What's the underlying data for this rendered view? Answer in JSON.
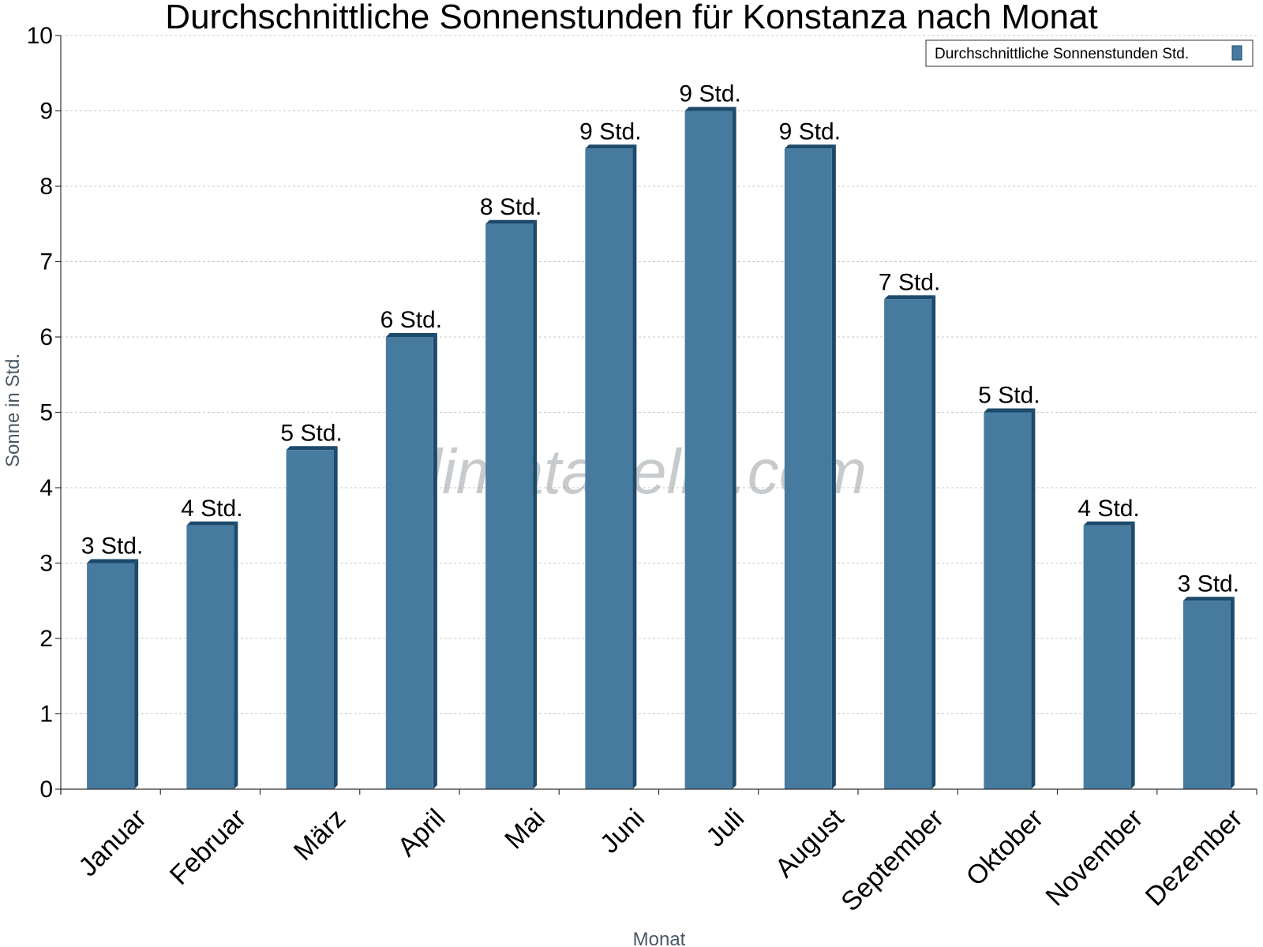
{
  "chart_data": {
    "type": "bar",
    "title": "Durchschnittliche Sonnenstunden für Konstanza nach Monat",
    "xlabel": "Monat",
    "ylabel": "Sonne in Std.",
    "ylim": [
      0,
      10
    ],
    "yticks": [
      "0",
      "1",
      "2",
      "3",
      "4",
      "5",
      "6",
      "7",
      "8",
      "9",
      "10"
    ],
    "grid": true,
    "legend_position": "top-right",
    "categories": [
      "Januar",
      "Februar",
      "März",
      "April",
      "Mai",
      "Juni",
      "Juli",
      "August",
      "September",
      "Oktober",
      "November",
      "Dezember"
    ],
    "series": [
      {
        "name": "Durchschnittliche Sonnenstunden Std.",
        "color": "#467b9f",
        "values": [
          3,
          3.5,
          4.5,
          6,
          7.5,
          8.5,
          9,
          8.5,
          6.5,
          5,
          3.5,
          2.5
        ],
        "data_labels": [
          "3 Std.",
          "4 Std.",
          "5 Std.",
          "6 Std.",
          "8 Std.",
          "9 Std.",
          "9 Std.",
          "9 Std.",
          "7 Std.",
          "5 Std.",
          "4 Std.",
          "3 Std."
        ]
      }
    ],
    "watermark": "klimatabelle.com"
  }
}
